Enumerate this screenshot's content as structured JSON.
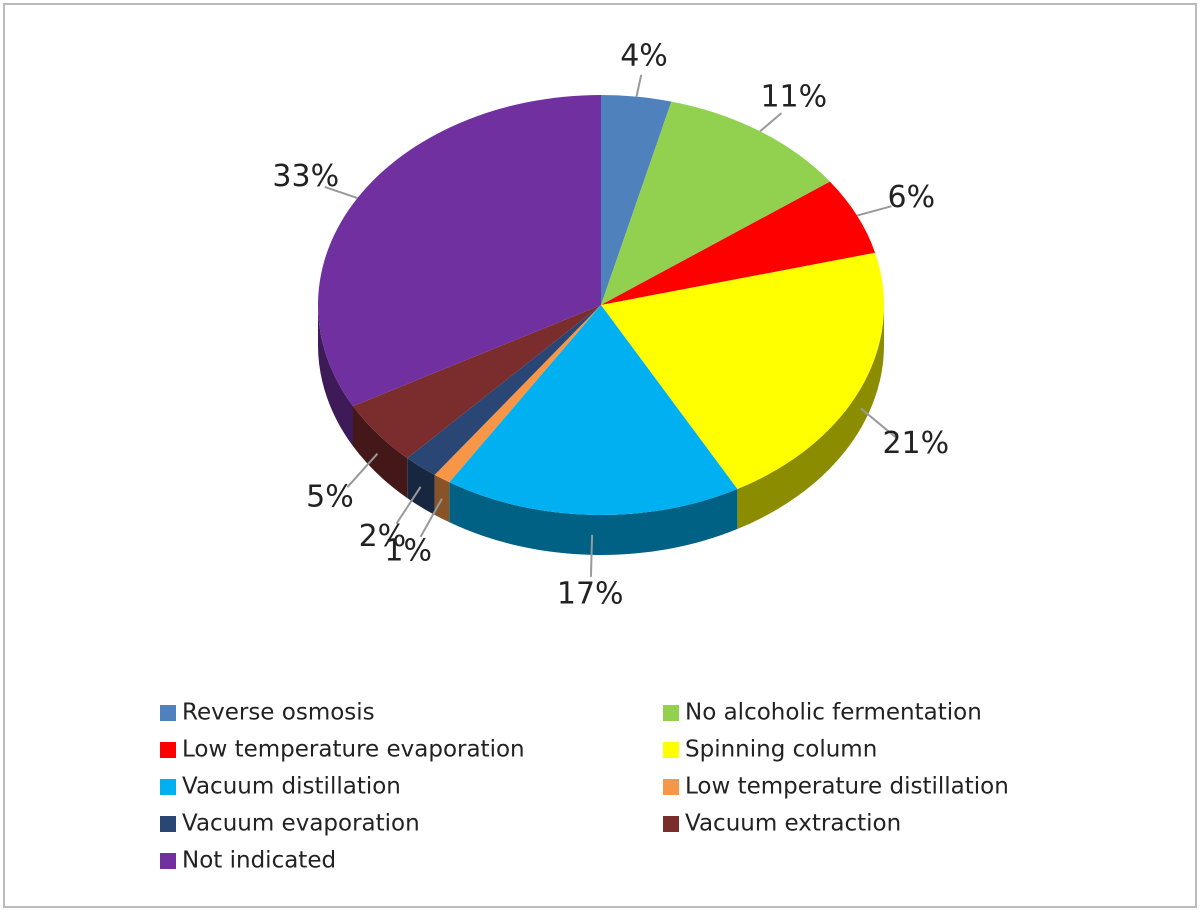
{
  "chart_data": {
    "type": "pie",
    "categories": [
      "Reverse osmosis",
      "No alcoholic fermentation",
      "Low temperature evaporation",
      "Spinning column",
      "Vacuum distillation",
      "Low temperature distillation",
      "Vacuum evaporation",
      "Vacuum extraction",
      "Not indicated"
    ],
    "values": [
      4,
      11,
      6,
      21,
      17,
      1,
      2,
      5,
      33
    ],
    "value_labels": [
      "4%",
      "11%",
      "6%",
      "21%",
      "17%",
      "1%",
      "2%",
      "5%",
      "33%"
    ],
    "colors": [
      "#4f81bd",
      "#92d050",
      "#ff0000",
      "#ffff00",
      "#00b0f0",
      "#f79646",
      "#2a4674",
      "#7b2c2c",
      "#7030a0"
    ]
  }
}
